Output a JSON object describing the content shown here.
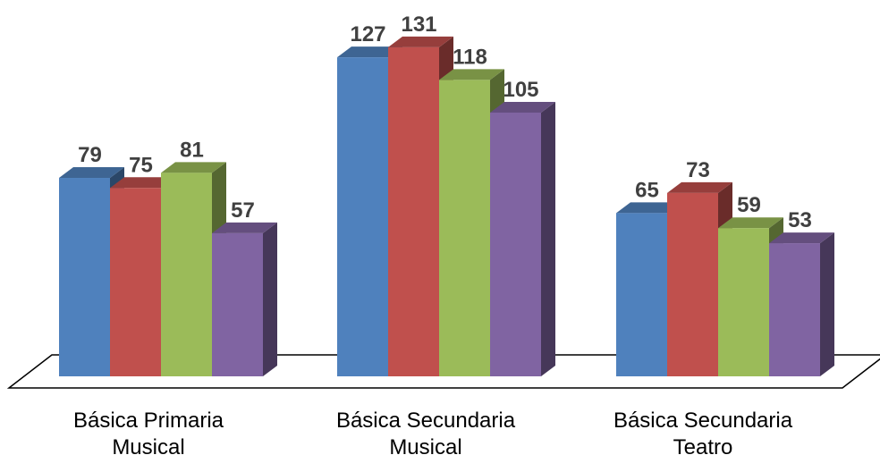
{
  "chart_data": {
    "type": "bar",
    "style": "3d-clustered-column",
    "categories": [
      [
        "Básica Primaria",
        "Musical"
      ],
      [
        "Básica Secundaria",
        "Musical"
      ],
      [
        "Básica Secundaria",
        "Teatro"
      ]
    ],
    "series": [
      {
        "values": [
          79,
          127,
          65
        ],
        "color": "#4F81BD"
      },
      {
        "values": [
          75,
          131,
          73
        ],
        "color": "#C0504D"
      },
      {
        "values": [
          81,
          118,
          59
        ],
        "color": "#9BBB59"
      },
      {
        "values": [
          57,
          105,
          53
        ],
        "color": "#8064A2"
      }
    ],
    "data_labels": true,
    "legend": "none",
    "grid": false
  }
}
